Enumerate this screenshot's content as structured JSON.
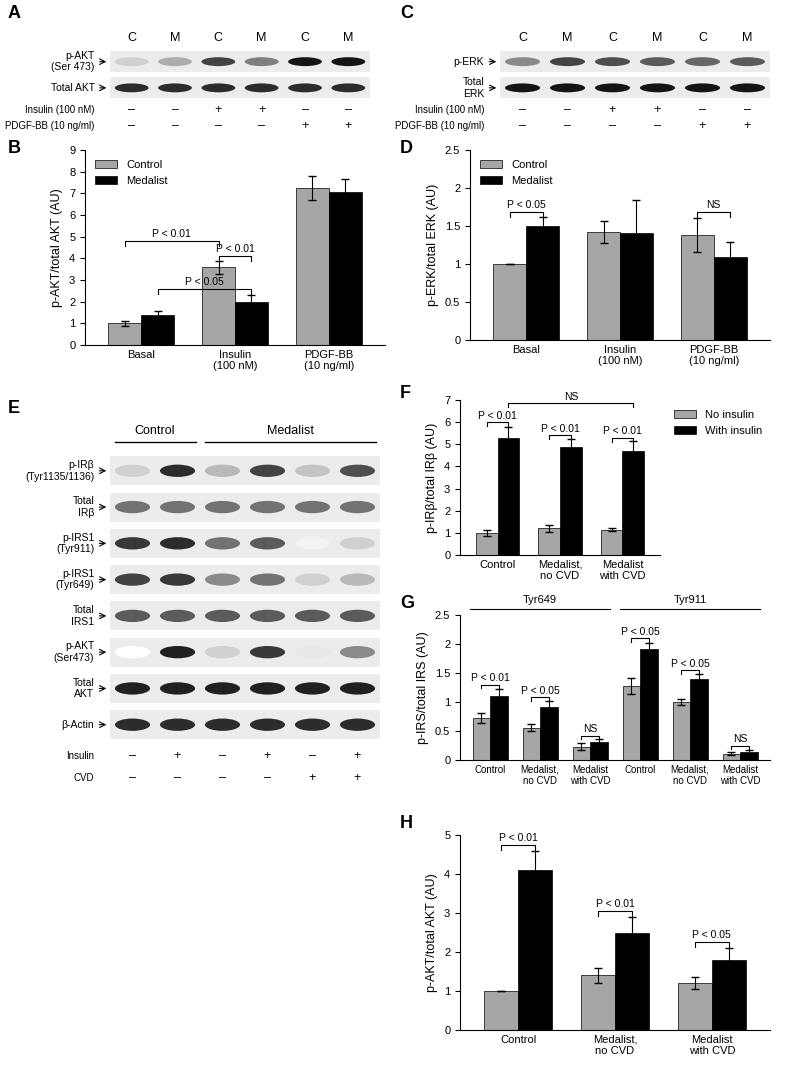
{
  "chart_data": [
    {
      "type": "blot",
      "panel_label": "A",
      "lanes": [
        "C",
        "M",
        "C",
        "M",
        "C",
        "M"
      ],
      "rows": [
        {
          "label": "p-AKT\n(Ser 473)",
          "intensities": [
            0.2,
            0.35,
            0.8,
            0.55,
            1.0,
            1.0
          ]
        },
        {
          "label": "Total AKT",
          "intensities": [
            0.9,
            0.9,
            0.9,
            0.9,
            0.9,
            0.9
          ]
        }
      ],
      "treatments": [
        {
          "label": "Insulin (100 nM)",
          "signs": [
            "–",
            "–",
            "+",
            "+",
            "–",
            "–"
          ]
        },
        {
          "label": "PDGF-BB (10 ng/ml)",
          "signs": [
            "–",
            "–",
            "–",
            "–",
            "+",
            "+"
          ]
        }
      ]
    },
    {
      "type": "bar",
      "panel_label": "B",
      "y_label": "p-AKT/total AKT (AU)",
      "categories": [
        "Basal",
        "Insulin\n(100 nM)",
        "PDGF-BB\n(10 ng/ml)"
      ],
      "series": [
        {
          "name": "Control",
          "color": "#a6a6a6",
          "values": [
            1.0,
            3.6,
            7.25
          ],
          "errors": [
            0.12,
            0.3,
            0.55
          ]
        },
        {
          "name": "Medalist",
          "color": "#000000",
          "values": [
            1.4,
            2.0,
            7.05
          ],
          "errors": [
            0.15,
            0.3,
            0.6
          ]
        }
      ],
      "ylim": [
        0,
        9
      ],
      "yticks": [
        0,
        1,
        2,
        3,
        4,
        5,
        6,
        7,
        8,
        9
      ],
      "legend": "upper left",
      "annotations": [
        {
          "text": "P < 0.01",
          "from": [
            0,
            0
          ],
          "to": [
            1,
            0
          ],
          "y": 4.8
        },
        {
          "text": "P < 0.01",
          "from": [
            1,
            0
          ],
          "to": [
            1,
            1
          ],
          "y": 4.1
        },
        {
          "text": "P < 0.05",
          "from": [
            0,
            1
          ],
          "to": [
            1,
            1
          ],
          "y": 2.6
        }
      ]
    },
    {
      "type": "blot",
      "panel_label": "C",
      "lanes": [
        "C",
        "M",
        "C",
        "M",
        "C",
        "M"
      ],
      "rows": [
        {
          "label": "p-ERK",
          "intensities": [
            0.5,
            0.8,
            0.75,
            0.7,
            0.65,
            0.7
          ]
        },
        {
          "label": "Total\nERK",
          "intensities": [
            1.0,
            1.0,
            1.0,
            1.0,
            1.0,
            1.0
          ]
        }
      ],
      "treatments": [
        {
          "label": "Insulin (100 nM)",
          "signs": [
            "–",
            "–",
            "+",
            "+",
            "–",
            "–"
          ]
        },
        {
          "label": "PDGF-BB (10 ng/ml)",
          "signs": [
            "–",
            "–",
            "–",
            "–",
            "+",
            "+"
          ]
        }
      ]
    },
    {
      "type": "bar",
      "panel_label": "D",
      "y_label": "p-ERK/total ERK (AU)",
      "categories": [
        "Basal",
        "Insulin\n(100 nM)",
        "PDGF-BB\n(10 ng/ml)"
      ],
      "series": [
        {
          "name": "Control",
          "color": "#a6a6a6",
          "values": [
            1.0,
            1.42,
            1.38
          ],
          "errors": [
            0,
            0.15,
            0.22
          ]
        },
        {
          "name": "Medalist",
          "color": "#000000",
          "values": [
            1.5,
            1.41,
            1.09
          ],
          "errors": [
            0.12,
            0.43,
            0.2
          ]
        }
      ],
      "ylim": [
        0,
        2.5
      ],
      "yticks": [
        0,
        0.5,
        1,
        1.5,
        2,
        2.5
      ],
      "legend": "upper left",
      "annotations": [
        {
          "text": "P < 0.05",
          "from": [
            0,
            0
          ],
          "to": [
            0,
            1
          ],
          "y": 1.68
        },
        {
          "text": "NS",
          "from": [
            2,
            0
          ],
          "to": [
            2,
            1
          ],
          "y": 1.68
        }
      ]
    },
    {
      "type": "blot",
      "panel_label": "E",
      "lane_groups": [
        {
          "label": "Control",
          "count": 2
        },
        {
          "label": "Medalist",
          "count": 4
        }
      ],
      "rows": [
        {
          "label": "p-IRβ\n(Tyr1135/1136)",
          "intensities": [
            0.2,
            0.9,
            0.3,
            0.8,
            0.25,
            0.75
          ]
        },
        {
          "label": "Total\nIRβ",
          "intensities": [
            0.6,
            0.6,
            0.6,
            0.6,
            0.6,
            0.6
          ]
        },
        {
          "label": "p-IRS1\n(Tyr911)",
          "intensities": [
            0.85,
            0.9,
            0.6,
            0.7,
            0.05,
            0.2
          ]
        },
        {
          "label": "p-IRS1\n(Tyr649)",
          "intensities": [
            0.8,
            0.85,
            0.5,
            0.6,
            0.2,
            0.3
          ]
        },
        {
          "label": "Total\nIRS1",
          "intensities": [
            0.7,
            0.7,
            0.7,
            0.7,
            0.7,
            0.7
          ]
        },
        {
          "label": "p-AKT\n(Ser473)",
          "intensities": [
            0.0,
            0.95,
            0.2,
            0.85,
            0.1,
            0.5
          ]
        },
        {
          "label": "Total\nAKT",
          "intensities": [
            0.95,
            0.95,
            0.95,
            0.95,
            0.95,
            0.95
          ]
        },
        {
          "label": "β-Actin",
          "intensities": [
            0.9,
            0.9,
            0.9,
            0.9,
            0.9,
            0.9
          ]
        }
      ],
      "treatments": [
        {
          "label": "Insulin",
          "signs": [
            "–",
            "+",
            "–",
            "+",
            "–",
            "+"
          ]
        },
        {
          "label": "CVD",
          "signs": [
            "–",
            "–",
            "–",
            "–",
            "+",
            "+"
          ]
        }
      ]
    },
    {
      "type": "bar",
      "panel_label": "F",
      "y_label": "p-IRβ/total IRβ (AU)",
      "categories": [
        "Control",
        "Medalist,\nno CVD",
        "Medalist\nwith CVD"
      ],
      "series": [
        {
          "name": "No insulin",
          "color": "#a6a6a6",
          "values": [
            1.0,
            1.2,
            1.15
          ],
          "errors": [
            0.15,
            0.15,
            0.08
          ]
        },
        {
          "name": "With insulin",
          "color": "#000000",
          "values": [
            5.3,
            4.9,
            4.7
          ],
          "errors": [
            0.5,
            0.35,
            0.45
          ]
        }
      ],
      "ylim": [
        0,
        7
      ],
      "yticks": [
        0,
        1,
        2,
        3,
        4,
        5,
        6,
        7
      ],
      "legend": "right",
      "annotations": [
        {
          "text": "P < 0.01",
          "from": [
            0,
            0
          ],
          "to": [
            0,
            1
          ],
          "y": 6.0
        },
        {
          "text": "P < 0.01",
          "from": [
            1,
            0
          ],
          "to": [
            1,
            1
          ],
          "y": 5.4
        },
        {
          "text": "P < 0.01",
          "from": [
            2,
            0
          ],
          "to": [
            2,
            1
          ],
          "y": 5.3
        },
        {
          "text": "NS",
          "from": [
            0,
            1
          ],
          "to": [
            2,
            1
          ],
          "y": 6.85
        }
      ]
    },
    {
      "type": "bar",
      "panel_label": "G",
      "y_label": "p-IRS/total IRS (AU)",
      "categories": [
        "Control",
        "Medalist,\nno CVD",
        "Medalist\nwith CVD",
        "Control",
        "Medalist,\nno CVD",
        "Medalist\nwith CVD"
      ],
      "groups": [
        {
          "label": "Tyr649",
          "count": 3
        },
        {
          "label": "Tyr911",
          "count": 3
        }
      ],
      "series": [
        {
          "name": "No insulin",
          "color": "#a6a6a6",
          "values": [
            0.72,
            0.56,
            0.23,
            1.27,
            1.0,
            0.11
          ],
          "errors": [
            0.09,
            0.06,
            0.06,
            0.14,
            0.06,
            0.03
          ]
        },
        {
          "name": "With insulin",
          "color": "#000000",
          "values": [
            1.1,
            0.91,
            0.31,
            1.92,
            1.4,
            0.14
          ],
          "errors": [
            0.12,
            0.1,
            0.05,
            0.1,
            0.08,
            0.03
          ]
        }
      ],
      "ylim": [
        0,
        2.5
      ],
      "yticks": [
        0,
        0.5,
        1,
        1.5,
        2,
        2.5
      ],
      "annotations": [
        {
          "text": "P < 0.01",
          "from": [
            0,
            0
          ],
          "to": [
            0,
            1
          ],
          "y": 1.3
        },
        {
          "text": "P < 0.05",
          "from": [
            1,
            0
          ],
          "to": [
            1,
            1
          ],
          "y": 1.08
        },
        {
          "text": "NS",
          "from": [
            2,
            0
          ],
          "to": [
            2,
            1
          ],
          "y": 0.42
        },
        {
          "text": "P < 0.05",
          "from": [
            3,
            0
          ],
          "to": [
            3,
            1
          ],
          "y": 2.1
        },
        {
          "text": "P < 0.05",
          "from": [
            4,
            0
          ],
          "to": [
            4,
            1
          ],
          "y": 1.55
        },
        {
          "text": "NS",
          "from": [
            5,
            0
          ],
          "to": [
            5,
            1
          ],
          "y": 0.25
        }
      ]
    },
    {
      "type": "bar",
      "panel_label": "H",
      "y_label": "p-AKT/total AKT (AU)",
      "categories": [
        "Control",
        "Medalist,\nno CVD",
        "Medalist\nwith CVD"
      ],
      "series": [
        {
          "name": "No insulin",
          "color": "#a6a6a6",
          "values": [
            1.0,
            1.4,
            1.2
          ],
          "errors": [
            0,
            0.2,
            0.15
          ]
        },
        {
          "name": "With insulin",
          "color": "#000000",
          "values": [
            4.1,
            2.5,
            1.8
          ],
          "errors": [
            0.5,
            0.4,
            0.3
          ]
        }
      ],
      "ylim": [
        0,
        5
      ],
      "yticks": [
        0,
        1,
        2,
        3,
        4,
        5
      ],
      "annotations": [
        {
          "text": "P < 0.01",
          "from": [
            0,
            0
          ],
          "to": [
            0,
            1
          ],
          "y": 4.75
        },
        {
          "text": "P < 0.01",
          "from": [
            1,
            0
          ],
          "to": [
            1,
            1
          ],
          "y": 3.05
        },
        {
          "text": "P < 0.05",
          "from": [
            2,
            0
          ],
          "to": [
            2,
            1
          ],
          "y": 2.25
        }
      ]
    }
  ]
}
